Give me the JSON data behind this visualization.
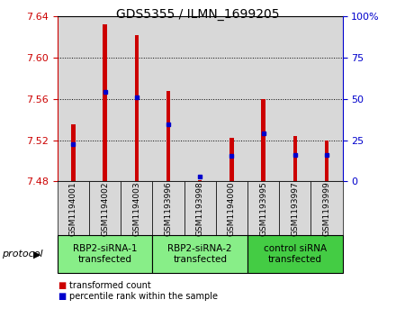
{
  "title": "GDS5355 / ILMN_1699205",
  "samples": [
    "GSM1194001",
    "GSM1194002",
    "GSM1194003",
    "GSM1193996",
    "GSM1193998",
    "GSM1194000",
    "GSM1193995",
    "GSM1193997",
    "GSM1193999"
  ],
  "red_values": [
    7.535,
    7.632,
    7.622,
    7.568,
    7.481,
    7.522,
    7.56,
    7.524,
    7.52
  ],
  "blue_values": [
    7.516,
    7.567,
    7.562,
    7.535,
    7.485,
    7.505,
    7.527,
    7.506,
    7.506
  ],
  "ymin": 7.48,
  "ymax": 7.64,
  "yticks": [
    7.48,
    7.52,
    7.56,
    7.6,
    7.64
  ],
  "y2ticks": [
    0,
    25,
    50,
    75,
    100
  ],
  "y2labels": [
    "0",
    "25",
    "50",
    "75",
    "100%"
  ],
  "protocol_groups": [
    {
      "label": "RBP2-siRNA-1\ntransfected",
      "indices": [
        0,
        1,
        2
      ],
      "color": "#88ee88"
    },
    {
      "label": "RBP2-siRNA-2\ntransfected",
      "indices": [
        3,
        4,
        5
      ],
      "color": "#88ee88"
    },
    {
      "label": "control siRNA\ntransfected",
      "indices": [
        6,
        7,
        8
      ],
      "color": "#44cc44"
    }
  ],
  "bar_bottom": 7.48,
  "bar_width": 0.12,
  "red_color": "#cc0000",
  "blue_color": "#0000cc",
  "plot_bg_color": "#d8d8d8",
  "xtick_bg_color": "#d8d8d8",
  "left_axis_color": "#cc0000",
  "right_axis_color": "#0000cc",
  "grid_linestyle": ":",
  "grid_color": "#000000"
}
